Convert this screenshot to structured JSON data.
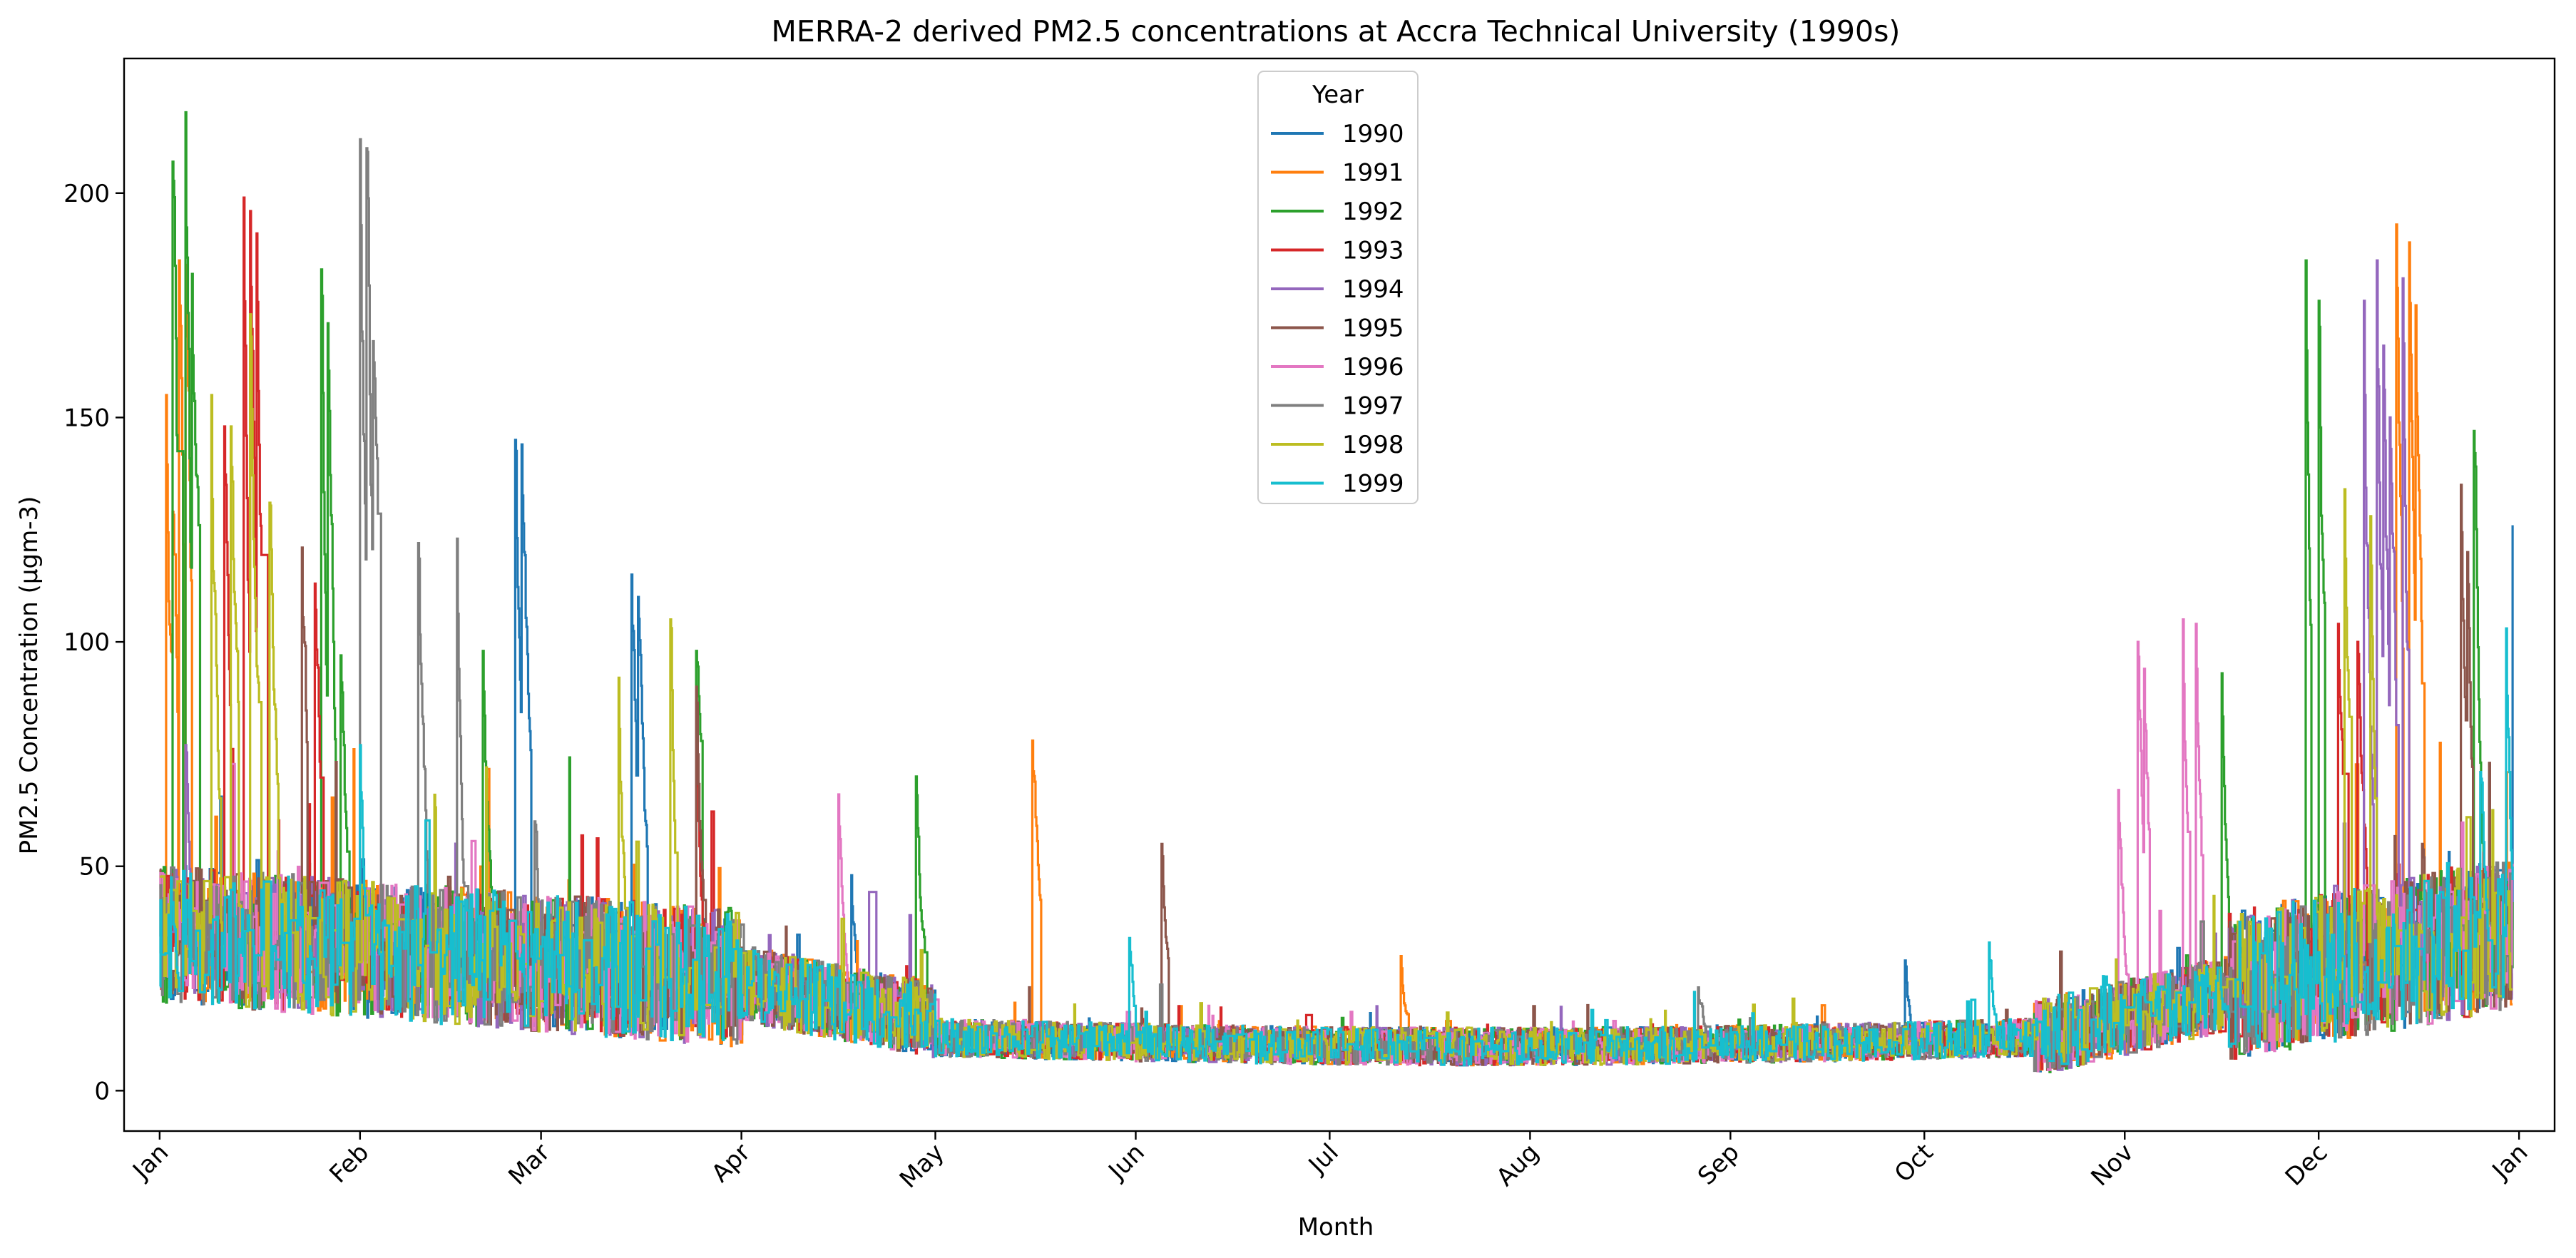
{
  "chart_data": {
    "type": "line",
    "title": "MERRA-2 derived PM2.5 concentrations at Accra Technical University (1990s)",
    "xlabel": "Month",
    "ylabel": "PM2.5 Concentration (µgm-3)",
    "xlim": [
      -5.5,
      370.5
    ],
    "ylim": [
      -9,
      230
    ],
    "grid": false,
    "legend": {
      "title": "Year",
      "placement": "upper-center"
    },
    "x_ticks": [
      {
        "label": "Jan",
        "day": 0
      },
      {
        "label": "Feb",
        "day": 31
      },
      {
        "label": "Mar",
        "day": 59
      },
      {
        "label": "Apr",
        "day": 90
      },
      {
        "label": "May",
        "day": 120
      },
      {
        "label": "Jun",
        "day": 151
      },
      {
        "label": "Jul",
        "day": 181
      },
      {
        "label": "Aug",
        "day": 212
      },
      {
        "label": "Sep",
        "day": 243
      },
      {
        "label": "Oct",
        "day": 273
      },
      {
        "label": "Nov",
        "day": 304
      },
      {
        "label": "Dec",
        "day": 334
      },
      {
        "label": "Jan",
        "day": 365
      }
    ],
    "y_ticks": [
      0,
      50,
      100,
      150,
      200
    ],
    "x_unit": "day of year",
    "series": [
      {
        "name": "1990",
        "color": "#1f77b4",
        "peaks": [
          [
            4,
            50
          ],
          [
            55,
            145
          ],
          [
            56,
            144
          ],
          [
            73,
            115
          ],
          [
            74,
            110
          ],
          [
            107,
            48
          ],
          [
            270,
            29
          ],
          [
            364,
            126
          ]
        ]
      },
      {
        "name": "1991",
        "color": "#ff7f0e",
        "peaks": [
          [
            1,
            155
          ],
          [
            2,
            129
          ],
          [
            3,
            185
          ],
          [
            4,
            184
          ],
          [
            135,
            78
          ],
          [
            192,
            30
          ],
          [
            346,
            193
          ],
          [
            348,
            189
          ],
          [
            349,
            175
          ]
        ]
      },
      {
        "name": "1992",
        "color": "#2ca02c",
        "peaks": [
          [
            2,
            207
          ],
          [
            4,
            218
          ],
          [
            5,
            182
          ],
          [
            25,
            183
          ],
          [
            26,
            171
          ],
          [
            28,
            97
          ],
          [
            50,
            98
          ],
          [
            83,
            98
          ],
          [
            117,
            70
          ],
          [
            319,
            93
          ],
          [
            332,
            185
          ],
          [
            334,
            176
          ],
          [
            358,
            147
          ]
        ]
      },
      {
        "name": "1993",
        "color": "#d62728",
        "peaks": [
          [
            13,
            199
          ],
          [
            14,
            196
          ],
          [
            15,
            191
          ],
          [
            10,
            148
          ],
          [
            24,
            113
          ],
          [
            83,
            86
          ],
          [
            337,
            104
          ],
          [
            340,
            100
          ]
        ]
      },
      {
        "name": "1994",
        "color": "#9467bd",
        "peaks": [
          [
            4,
            77
          ],
          [
            341,
            211
          ],
          [
            343,
            185
          ],
          [
            344,
            166
          ],
          [
            345,
            150
          ],
          [
            347,
            181
          ],
          [
            341,
            176
          ]
        ]
      },
      {
        "name": "1995",
        "color": "#8c564b",
        "peaks": [
          [
            22,
            121
          ],
          [
            83,
            90
          ],
          [
            155,
            55
          ],
          [
            356,
            135
          ],
          [
            357,
            120
          ],
          [
            350,
            55
          ]
        ]
      },
      {
        "name": "1996",
        "color": "#e377c2",
        "peaks": [
          [
            105,
            66
          ],
          [
            306,
            100
          ],
          [
            307,
            94
          ],
          [
            313,
            105
          ],
          [
            315,
            104
          ],
          [
            303,
            67
          ]
        ]
      },
      {
        "name": "1997",
        "color": "#7f7f7f",
        "peaks": [
          [
            31,
            212
          ],
          [
            32,
            210
          ],
          [
            33,
            167
          ],
          [
            40,
            122
          ],
          [
            46,
            123
          ],
          [
            58,
            60
          ],
          [
            238,
            23
          ]
        ]
      },
      {
        "name": "1998",
        "color": "#bcbd22",
        "peaks": [
          [
            8,
            155
          ],
          [
            11,
            148
          ],
          [
            14,
            173
          ],
          [
            17,
            131
          ],
          [
            71,
            92
          ],
          [
            79,
            105
          ],
          [
            338,
            134
          ],
          [
            342,
            128
          ]
        ]
      },
      {
        "name": "1999",
        "color": "#17becf",
        "peaks": [
          [
            2,
            42
          ],
          [
            31,
            77
          ],
          [
            150,
            34
          ],
          [
            283,
            33
          ],
          [
            363,
            103
          ],
          [
            359,
            71
          ]
        ]
      }
    ]
  }
}
